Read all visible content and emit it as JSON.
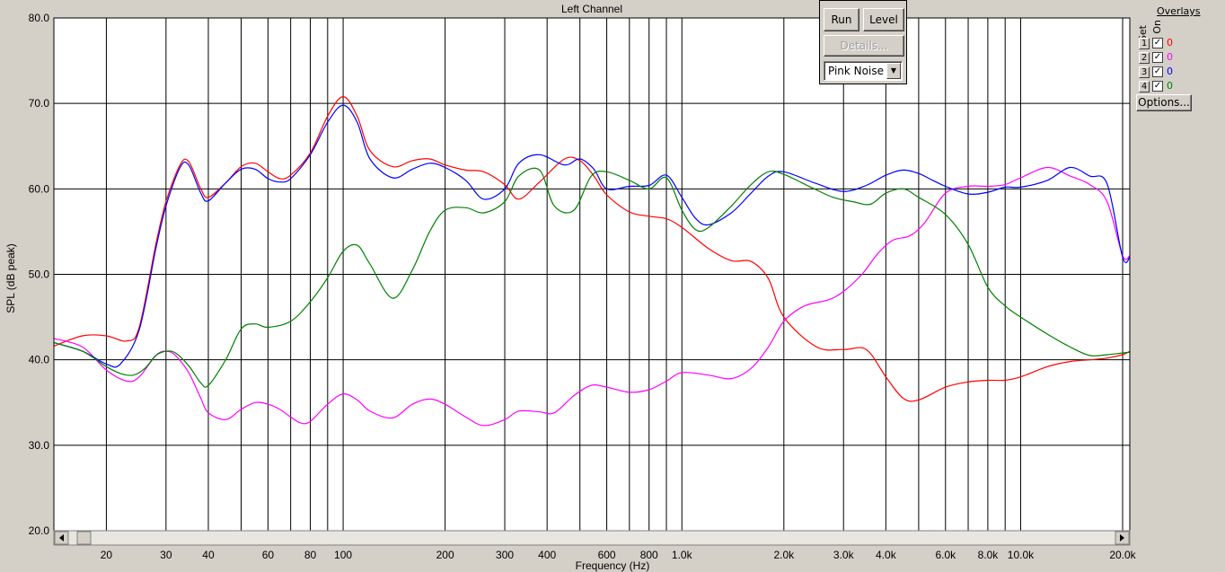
{
  "chart_data": {
    "type": "line",
    "title": "Left Channel",
    "xlabel": "Frequency (Hz)",
    "ylabel": "SPL (dB peak)",
    "xscale": "log",
    "xlim": [
      14,
      21000
    ],
    "ylim": [
      20,
      80
    ],
    "grid": true,
    "ytick_labels": [
      "20.0",
      "30.0",
      "40.0",
      "50.0",
      "60.0",
      "70.0",
      "80.0"
    ],
    "xtick_values": [
      20,
      30,
      40,
      60,
      80,
      100,
      200,
      300,
      400,
      600,
      800,
      1000,
      2000,
      3000,
      4000,
      6000,
      8000,
      10000,
      20000
    ],
    "xtick_labels": [
      "20",
      "30",
      "40",
      "60",
      "80",
      "100",
      "200",
      "300",
      "400",
      "600",
      "800",
      "1.0k",
      "2.0k",
      "3.0k",
      "4.0k",
      "6.0k",
      "8.0k",
      "10.0k",
      "20.0k"
    ],
    "series": [
      {
        "color": "#ff0000",
        "x": [
          14,
          17,
          20,
          23,
          25,
          28,
          30,
          33,
          35,
          38,
          40,
          45,
          50,
          55,
          60,
          65,
          70,
          80,
          90,
          100,
          110,
          120,
          140,
          160,
          180,
          200,
          230,
          260,
          300,
          330,
          380,
          450,
          500,
          550,
          600,
          700,
          800,
          900,
          1000,
          1200,
          1400,
          1600,
          1800,
          2000,
          2500,
          3000,
          3500,
          4000,
          4500,
          5000,
          6000,
          7000,
          8000,
          9000,
          10000,
          12000,
          14000,
          16000,
          18000,
          20000,
          21000
        ],
        "y": [
          41.6,
          42.8,
          42.8,
          42.2,
          43.8,
          53.5,
          58.5,
          62.8,
          63.2,
          60.0,
          59.0,
          60.7,
          62.6,
          63.0,
          62.0,
          61.2,
          61.6,
          64.2,
          68.5,
          70.8,
          68.5,
          64.5,
          62.6,
          63.3,
          63.5,
          62.8,
          62.2,
          62.0,
          60.5,
          58.8,
          60.8,
          63.5,
          63.3,
          61.5,
          59.3,
          57.3,
          56.8,
          56.5,
          55.5,
          53.0,
          51.6,
          51.5,
          49.5,
          45.0,
          41.5,
          41.2,
          41.2,
          38.0,
          35.5,
          35.3,
          36.8,
          37.4,
          37.6,
          37.6,
          38.0,
          39.2,
          39.8,
          40.0,
          40.2,
          40.6,
          41.0
        ]
      },
      {
        "color": "#ff00ff",
        "x": [
          14,
          17,
          20,
          23,
          25,
          28,
          30,
          32,
          35,
          38,
          40,
          45,
          50,
          55,
          60,
          65,
          70,
          75,
          80,
          90,
          100,
          110,
          120,
          140,
          160,
          180,
          200,
          230,
          260,
          300,
          330,
          380,
          420,
          480,
          540,
          600,
          700,
          800,
          900,
          1000,
          1200,
          1400,
          1600,
          1800,
          2000,
          2300,
          2700,
          3000,
          3400,
          3800,
          4200,
          4700,
          5200,
          6000,
          7000,
          8000,
          9000,
          10000,
          12000,
          14000,
          16000,
          18000,
          20000,
          21000
        ],
        "y": [
          42.5,
          41.5,
          38.8,
          37.5,
          38.0,
          40.5,
          41.0,
          40.5,
          38.5,
          35.5,
          33.8,
          33.0,
          34.2,
          35.0,
          34.8,
          34.2,
          33.3,
          32.6,
          32.8,
          34.8,
          36.0,
          35.3,
          34.0,
          33.2,
          34.8,
          35.4,
          34.8,
          33.3,
          32.3,
          33.0,
          34.0,
          33.9,
          33.8,
          35.8,
          37.0,
          36.8,
          36.2,
          36.5,
          37.5,
          38.5,
          38.2,
          37.8,
          39.0,
          41.5,
          44.5,
          46.3,
          47.0,
          48.0,
          50.0,
          52.5,
          54.0,
          54.5,
          56.0,
          59.5,
          60.3,
          60.3,
          60.5,
          61.3,
          62.5,
          61.5,
          60.5,
          58.5,
          52.2,
          52.2
        ]
      },
      {
        "color": "#0000ff",
        "x": [
          14,
          17,
          20,
          22,
          25,
          28,
          30,
          33,
          35,
          38,
          40,
          45,
          50,
          55,
          60,
          65,
          70,
          80,
          90,
          100,
          110,
          120,
          140,
          160,
          180,
          200,
          230,
          260,
          300,
          330,
          380,
          450,
          500,
          550,
          600,
          700,
          800,
          900,
          1000,
          1100,
          1200,
          1400,
          1600,
          1800,
          2000,
          2500,
          3000,
          3500,
          4000,
          4500,
          5000,
          5500,
          6000,
          7000,
          8000,
          9000,
          10000,
          12000,
          14000,
          16000,
          18000,
          20000,
          21000
        ],
        "y": [
          42.0,
          41.0,
          39.5,
          39.5,
          43.5,
          53.0,
          58.0,
          62.5,
          62.8,
          59.5,
          58.6,
          60.7,
          62.3,
          62.3,
          61.2,
          60.8,
          61.2,
          64.0,
          67.8,
          69.8,
          67.8,
          63.5,
          61.3,
          62.3,
          63.0,
          62.5,
          61.0,
          58.8,
          60.0,
          63.0,
          64.0,
          62.8,
          63.5,
          62.3,
          60.0,
          60.3,
          60.4,
          61.6,
          59.0,
          56.5,
          55.8,
          57.2,
          59.5,
          61.5,
          62.0,
          60.6,
          59.7,
          60.4,
          61.6,
          62.2,
          61.8,
          61.0,
          60.3,
          59.4,
          59.6,
          60.2,
          60.2,
          61.0,
          62.5,
          61.5,
          60.6,
          52.0,
          52.0
        ]
      },
      {
        "color": "#008000",
        "x": [
          14,
          17,
          20,
          22,
          24,
          26,
          28,
          30,
          32,
          35,
          38,
          40,
          45,
          50,
          55,
          60,
          70,
          80,
          90,
          100,
          110,
          120,
          140,
          160,
          180,
          200,
          230,
          260,
          300,
          330,
          380,
          420,
          480,
          540,
          600,
          700,
          800,
          900,
          1000,
          1100,
          1200,
          1400,
          1600,
          1800,
          2000,
          2400,
          2800,
          3200,
          3600,
          4000,
          4500,
          5000,
          6000,
          7000,
          8000,
          9000,
          10000,
          12000,
          14000,
          16000,
          18000,
          20000,
          21000
        ],
        "y": [
          42.0,
          41.0,
          39.2,
          38.4,
          38.2,
          39.0,
          40.5,
          41.0,
          40.8,
          39.3,
          37.3,
          37.0,
          40.0,
          43.6,
          44.2,
          43.8,
          44.5,
          46.8,
          49.6,
          52.7,
          53.4,
          51.2,
          47.2,
          50.5,
          55.0,
          57.5,
          57.8,
          57.2,
          58.5,
          61.5,
          62.2,
          58.0,
          57.5,
          61.5,
          62.0,
          61.0,
          60.0,
          61.3,
          57.5,
          55.2,
          55.5,
          58.0,
          60.5,
          62.0,
          61.7,
          60.2,
          59.0,
          58.5,
          58.2,
          59.5,
          60.0,
          59.0,
          57.0,
          53.5,
          48.5,
          46.3,
          45.0,
          43.0,
          41.5,
          40.5,
          40.6,
          40.8,
          40.9
        ]
      }
    ]
  },
  "toolbar": {
    "run_label": "Run",
    "level_label": "Level",
    "details_label": "Details...",
    "signal_value": "Pink Noise"
  },
  "overlays": {
    "title": "Overlays",
    "set_header": "Set",
    "on_header": "On",
    "rows": [
      {
        "num": "1",
        "value": "0",
        "color": "#ff0000"
      },
      {
        "num": "2",
        "value": "0",
        "color": "#ff00ff"
      },
      {
        "num": "3",
        "value": "0",
        "color": "#0000ff"
      },
      {
        "num": "4",
        "value": "0",
        "color": "#008000"
      }
    ],
    "options_label": "Options..."
  },
  "icons": {
    "checkbox": "checkbox-checked-icon",
    "dropdown": "chevron-down-icon",
    "scroll_left": "arrow-left-icon",
    "scroll_right": "arrow-right-icon"
  }
}
